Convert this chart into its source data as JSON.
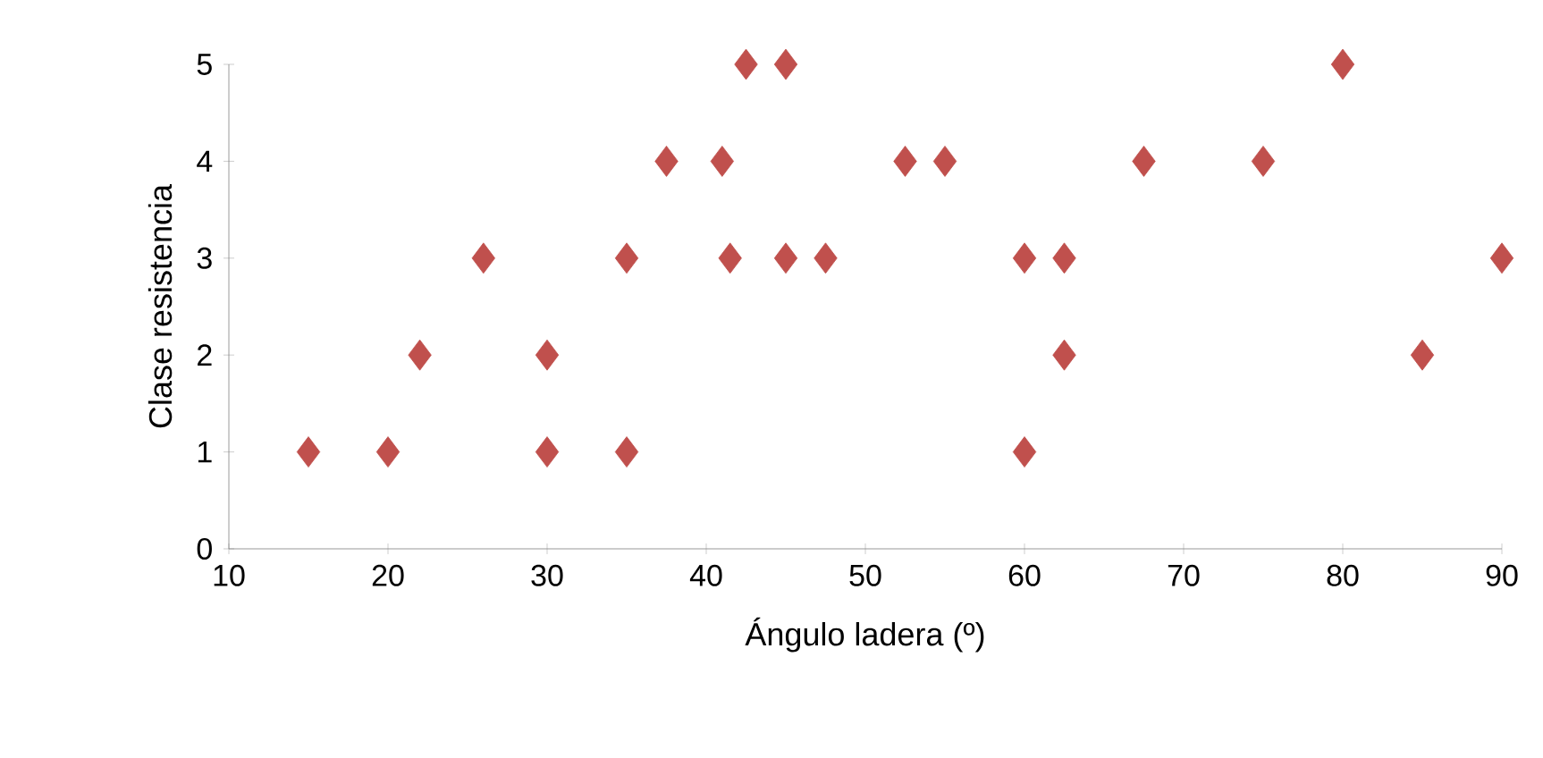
{
  "chart_data": {
    "type": "scatter",
    "xlabel": "Ángulo ladera (º)",
    "ylabel": "Clase resistencia",
    "xlim": [
      10,
      90
    ],
    "xticks": [
      10,
      20,
      30,
      40,
      50,
      60,
      70,
      80,
      90
    ],
    "ylim": [
      0,
      5
    ],
    "yticks": [
      0,
      1,
      2,
      3,
      4,
      5
    ],
    "grid": false,
    "marker": "diamond",
    "series": [
      {
        "color": "#c0504d",
        "x": [
          15,
          20,
          22,
          26,
          30,
          30,
          35,
          35,
          37.5,
          41,
          41.5,
          42.5,
          45,
          45,
          47.5,
          52.5,
          55,
          60,
          60,
          62.5,
          62.5,
          67.5,
          75,
          80,
          85,
          90
        ],
        "values": [
          1,
          1,
          2,
          3,
          2,
          1,
          3,
          1,
          4,
          4,
          3,
          5,
          5,
          3,
          3,
          4,
          4,
          3,
          1,
          3,
          2,
          4,
          4,
          5,
          2,
          3
        ]
      }
    ]
  }
}
